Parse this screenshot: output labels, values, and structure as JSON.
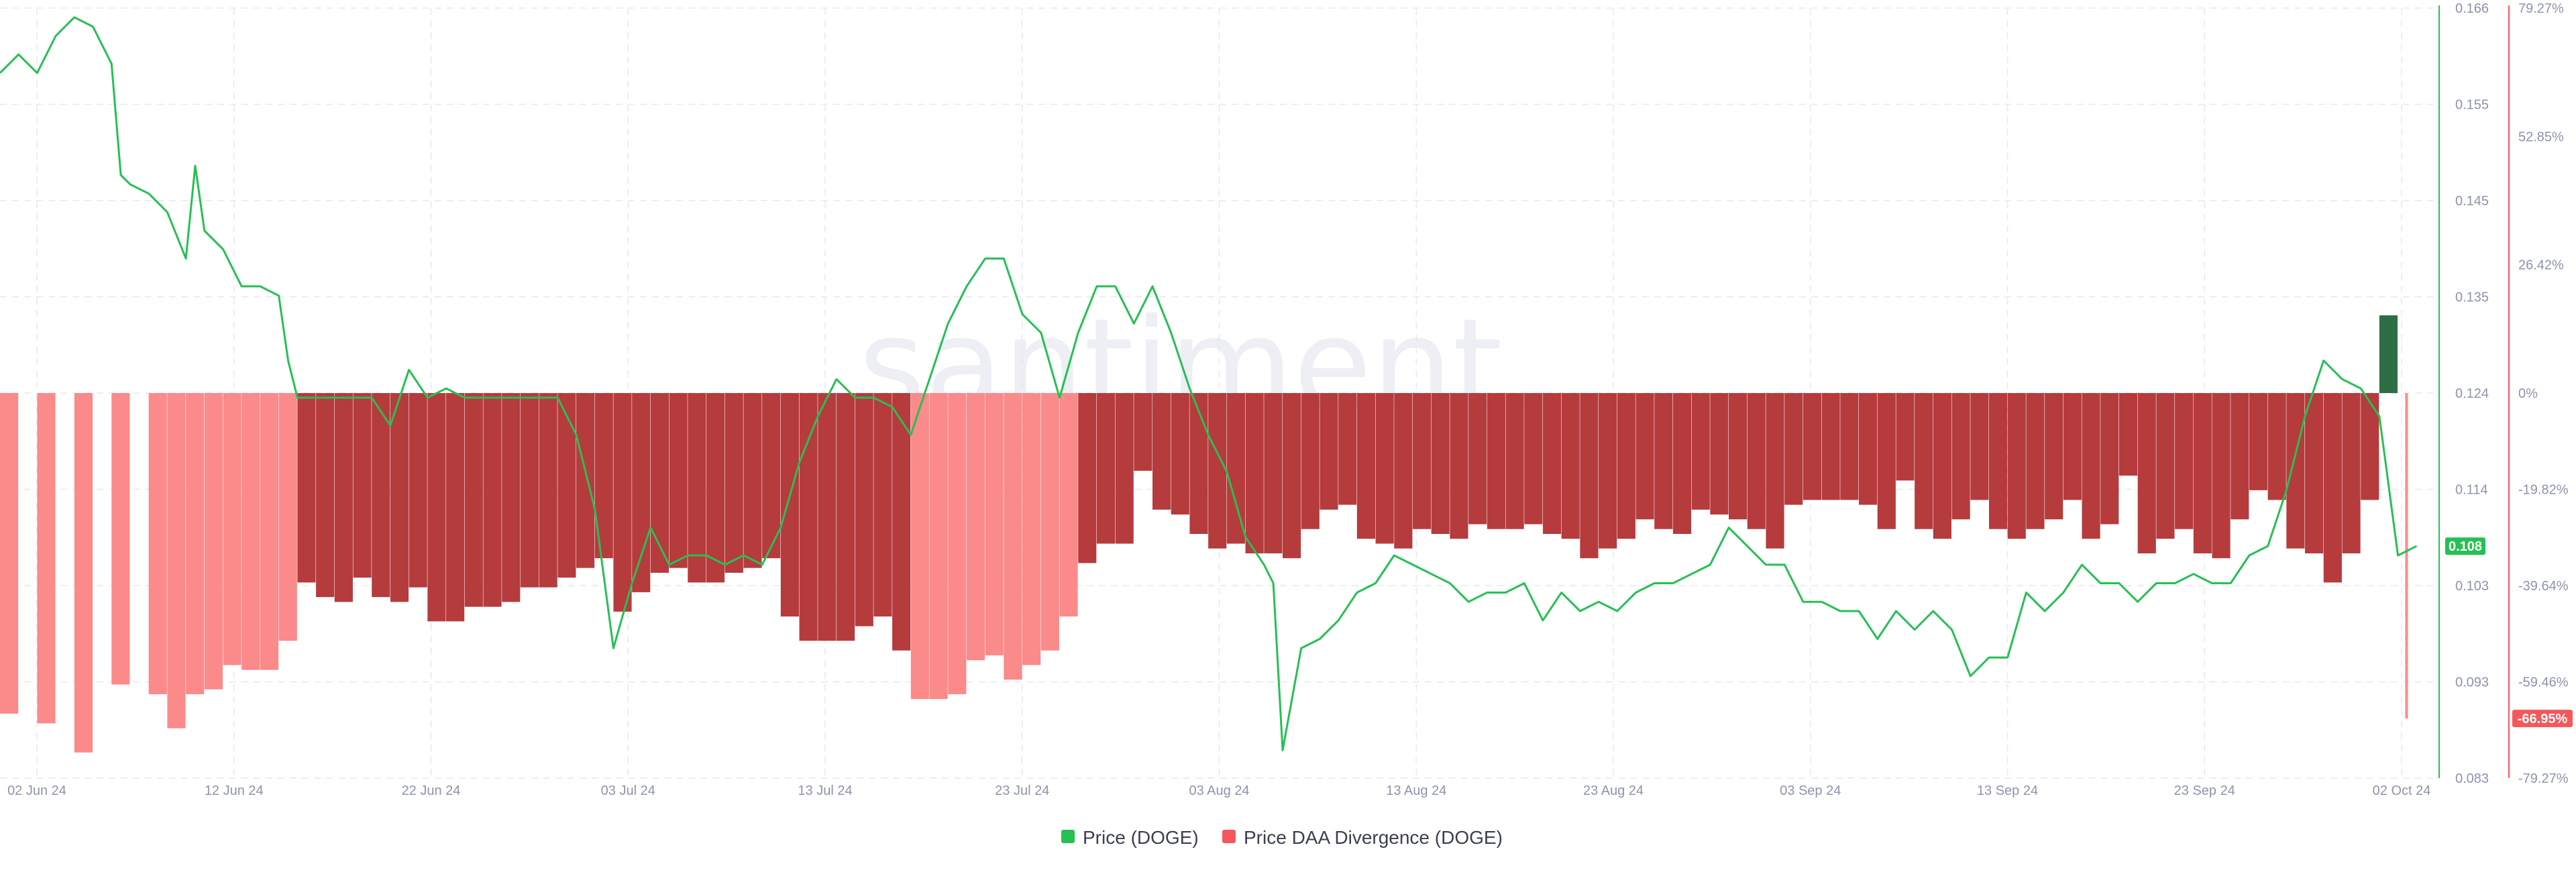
{
  "watermark": "santiment.",
  "legend": [
    {
      "label": "Price (DOGE)",
      "color": "#26c053"
    },
    {
      "label": "Price DAA Divergence (DOGE)",
      "color": "#f4585c"
    }
  ],
  "colors": {
    "price_line": "#26c053",
    "divergence_light": "#fb8a8a",
    "divergence_dark": "#b53b3d",
    "divergence_positive": "#2e6e44",
    "grid": "#e6e8ef",
    "price_badge_bg": "#26c053",
    "divergence_badge_bg": "#f4585c"
  },
  "badges": {
    "price": "0.108",
    "divergence": "-66.95%"
  },
  "chart_data": {
    "type": "line",
    "title": "",
    "x_tick_labels": [
      "02 Jun 24",
      "12 Jun 24",
      "22 Jun 24",
      "03 Jul 24",
      "13 Jul 24",
      "23 Jul 24",
      "03 Aug 24",
      "13 Aug 24",
      "23 Aug 24",
      "03 Sep 24",
      "13 Sep 24",
      "23 Sep 24",
      "02 Oct 24"
    ],
    "x_range_days": [
      0,
      122
    ],
    "price_axis": {
      "ticks": [
        "0.166",
        "0.155",
        "0.145",
        "0.135",
        "0.124",
        "0.114",
        "0.103",
        "0.093",
        "0.083"
      ],
      "ylim": [
        0.083,
        0.166
      ]
    },
    "divergence_axis": {
      "ticks": [
        "79.27%",
        "52.85%",
        "26.42%",
        "0%",
        "-19.82%",
        "-39.64%",
        "-59.46%",
        "-79.27%"
      ],
      "ylim": [
        -79.27,
        79.27
      ]
    },
    "legend_position": "bottom-center",
    "grid": true,
    "series": [
      {
        "name": "Price (DOGE)",
        "kind": "line",
        "axis": "left",
        "points": [
          [
            0,
            0.159
          ],
          [
            1,
            0.161
          ],
          [
            2,
            0.159
          ],
          [
            3,
            0.163
          ],
          [
            4,
            0.165
          ],
          [
            5,
            0.164
          ],
          [
            6,
            0.16
          ],
          [
            6.5,
            0.148
          ],
          [
            7,
            0.147
          ],
          [
            8,
            0.146
          ],
          [
            9,
            0.144
          ],
          [
            10,
            0.139
          ],
          [
            10.5,
            0.149
          ],
          [
            11,
            0.142
          ],
          [
            12,
            0.14
          ],
          [
            13,
            0.136
          ],
          [
            14,
            0.136
          ],
          [
            15,
            0.135
          ],
          [
            15.5,
            0.128
          ],
          [
            16,
            0.124
          ],
          [
            17,
            0.124
          ],
          [
            18,
            0.124
          ],
          [
            19,
            0.124
          ],
          [
            20,
            0.124
          ],
          [
            21,
            0.121
          ],
          [
            22,
            0.127
          ],
          [
            23,
            0.124
          ],
          [
            24,
            0.125
          ],
          [
            25,
            0.124
          ],
          [
            26,
            0.124
          ],
          [
            27,
            0.124
          ],
          [
            28,
            0.124
          ],
          [
            29,
            0.124
          ],
          [
            30,
            0.124
          ],
          [
            31,
            0.12
          ],
          [
            32,
            0.112
          ],
          [
            33,
            0.097
          ],
          [
            34,
            0.104
          ],
          [
            35,
            0.11
          ],
          [
            36,
            0.106
          ],
          [
            37,
            0.107
          ],
          [
            38,
            0.107
          ],
          [
            39,
            0.106
          ],
          [
            40,
            0.107
          ],
          [
            41,
            0.106
          ],
          [
            42,
            0.11
          ],
          [
            43,
            0.117
          ],
          [
            44,
            0.122
          ],
          [
            45,
            0.126
          ],
          [
            46,
            0.124
          ],
          [
            47,
            0.124
          ],
          [
            48,
            0.123
          ],
          [
            49,
            0.12
          ],
          [
            50,
            0.126
          ],
          [
            51,
            0.132
          ],
          [
            52,
            0.136
          ],
          [
            53,
            0.139
          ],
          [
            54,
            0.139
          ],
          [
            55,
            0.133
          ],
          [
            56,
            0.131
          ],
          [
            57,
            0.124
          ],
          [
            58,
            0.131
          ],
          [
            59,
            0.136
          ],
          [
            60,
            0.136
          ],
          [
            61,
            0.132
          ],
          [
            62,
            0.136
          ],
          [
            63,
            0.131
          ],
          [
            64,
            0.125
          ],
          [
            65,
            0.12
          ],
          [
            66,
            0.116
          ],
          [
            67,
            0.109
          ],
          [
            68,
            0.106
          ],
          [
            68.5,
            0.104
          ],
          [
            69,
            0.086
          ],
          [
            70,
            0.097
          ],
          [
            71,
            0.098
          ],
          [
            72,
            0.1
          ],
          [
            73,
            0.103
          ],
          [
            74,
            0.104
          ],
          [
            75,
            0.107
          ],
          [
            76,
            0.106
          ],
          [
            77,
            0.105
          ],
          [
            78,
            0.104
          ],
          [
            79,
            0.102
          ],
          [
            80,
            0.103
          ],
          [
            81,
            0.103
          ],
          [
            82,
            0.104
          ],
          [
            83,
            0.1
          ],
          [
            84,
            0.103
          ],
          [
            85,
            0.101
          ],
          [
            86,
            0.102
          ],
          [
            87,
            0.101
          ],
          [
            88,
            0.103
          ],
          [
            89,
            0.104
          ],
          [
            90,
            0.104
          ],
          [
            91,
            0.105
          ],
          [
            92,
            0.106
          ],
          [
            93,
            0.11
          ],
          [
            94,
            0.108
          ],
          [
            95,
            0.106
          ],
          [
            96,
            0.106
          ],
          [
            97,
            0.102
          ],
          [
            98,
            0.102
          ],
          [
            99,
            0.101
          ],
          [
            100,
            0.101
          ],
          [
            101,
            0.098
          ],
          [
            102,
            0.101
          ],
          [
            103,
            0.099
          ],
          [
            104,
            0.101
          ],
          [
            105,
            0.099
          ],
          [
            106,
            0.094
          ],
          [
            107,
            0.096
          ],
          [
            108,
            0.096
          ],
          [
            109,
            0.103
          ],
          [
            110,
            0.101
          ],
          [
            111,
            0.103
          ],
          [
            112,
            0.106
          ],
          [
            113,
            0.104
          ],
          [
            114,
            0.104
          ],
          [
            115,
            0.102
          ],
          [
            116,
            0.104
          ],
          [
            117,
            0.104
          ],
          [
            118,
            0.105
          ],
          [
            119,
            0.104
          ],
          [
            120,
            0.104
          ],
          [
            121,
            0.107
          ],
          [
            122,
            0.108
          ],
          [
            123,
            0.114
          ],
          [
            124,
            0.122
          ],
          [
            125,
            0.128
          ],
          [
            126,
            0.126
          ],
          [
            127,
            0.125
          ],
          [
            128,
            0.122
          ],
          [
            129,
            0.107
          ],
          [
            130,
            0.108
          ]
        ]
      },
      {
        "name": "Price DAA Divergence (DOGE)",
        "kind": "histogram",
        "axis": "right",
        "bars": [
          [
            0,
            -66
          ],
          [
            2,
            -68
          ],
          [
            4,
            -74
          ],
          [
            6,
            -60
          ],
          [
            8,
            -62
          ],
          [
            9,
            -69
          ],
          [
            10,
            -62
          ],
          [
            11,
            -61
          ],
          [
            12,
            -56
          ],
          [
            13,
            -57
          ],
          [
            14,
            -57
          ],
          [
            15,
            -51
          ],
          [
            16,
            -39
          ],
          [
            17,
            -42
          ],
          [
            18,
            -43
          ],
          [
            19,
            -38
          ],
          [
            20,
            -42
          ],
          [
            21,
            -43
          ],
          [
            22,
            -40
          ],
          [
            23,
            -47
          ],
          [
            24,
            -47
          ],
          [
            25,
            -44
          ],
          [
            26,
            -44
          ],
          [
            27,
            -43
          ],
          [
            28,
            -40
          ],
          [
            29,
            -40
          ],
          [
            30,
            -38
          ],
          [
            31,
            -36
          ],
          [
            32,
            -34
          ],
          [
            33,
            -45
          ],
          [
            34,
            -41
          ],
          [
            35,
            -37
          ],
          [
            36,
            -36
          ],
          [
            37,
            -39
          ],
          [
            38,
            -39
          ],
          [
            39,
            -37
          ],
          [
            40,
            -36
          ],
          [
            41,
            -34
          ],
          [
            42,
            -46
          ],
          [
            43,
            -51
          ],
          [
            44,
            -51
          ],
          [
            45,
            -51
          ],
          [
            46,
            -48
          ],
          [
            47,
            -46
          ],
          [
            48,
            -53
          ],
          [
            49,
            -63
          ],
          [
            50,
            -63
          ],
          [
            51,
            -62
          ],
          [
            52,
            -55
          ],
          [
            53,
            -54
          ],
          [
            54,
            -59
          ],
          [
            55,
            -56
          ],
          [
            56,
            -53
          ],
          [
            57,
            -46
          ],
          [
            58,
            -35
          ],
          [
            59,
            -31
          ],
          [
            60,
            -31
          ],
          [
            61,
            -16
          ],
          [
            62,
            -24
          ],
          [
            63,
            -25
          ],
          [
            64,
            -29
          ],
          [
            65,
            -32
          ],
          [
            66,
            -31
          ],
          [
            67,
            -33
          ],
          [
            68,
            -33
          ],
          [
            69,
            -34
          ],
          [
            70,
            -28
          ],
          [
            71,
            -24
          ],
          [
            72,
            -23
          ],
          [
            73,
            -30
          ],
          [
            74,
            -31
          ],
          [
            75,
            -32
          ],
          [
            76,
            -28
          ],
          [
            77,
            -29
          ],
          [
            78,
            -30
          ],
          [
            79,
            -27
          ],
          [
            80,
            -28
          ],
          [
            81,
            -28
          ],
          [
            82,
            -27
          ],
          [
            83,
            -29
          ],
          [
            84,
            -30
          ],
          [
            85,
            -34
          ],
          [
            86,
            -32
          ],
          [
            87,
            -30
          ],
          [
            88,
            -26
          ],
          [
            89,
            -28
          ],
          [
            90,
            -29
          ],
          [
            91,
            -24
          ],
          [
            92,
            -25
          ],
          [
            93,
            -26
          ],
          [
            94,
            -28
          ],
          [
            95,
            -32
          ],
          [
            96,
            -23
          ],
          [
            97,
            -22
          ],
          [
            98,
            -22
          ],
          [
            99,
            -22
          ],
          [
            100,
            -23
          ],
          [
            101,
            -28
          ],
          [
            102,
            -18
          ],
          [
            103,
            -28
          ],
          [
            104,
            -30
          ],
          [
            105,
            -26
          ],
          [
            106,
            -22
          ],
          [
            107,
            -28
          ],
          [
            108,
            -30
          ],
          [
            109,
            -28
          ],
          [
            110,
            -26
          ],
          [
            111,
            -22
          ],
          [
            112,
            -30
          ],
          [
            113,
            -27
          ],
          [
            114,
            -17
          ],
          [
            115,
            -33
          ],
          [
            116,
            -30
          ],
          [
            117,
            -28
          ],
          [
            118,
            -33
          ],
          [
            119,
            -34
          ],
          [
            120,
            -26
          ],
          [
            121,
            -20
          ],
          [
            122,
            -22
          ],
          [
            123,
            -32
          ],
          [
            124,
            -33
          ],
          [
            125,
            -39
          ],
          [
            126,
            -33
          ],
          [
            127,
            -22
          ],
          [
            128,
            16
          ],
          [
            129,
            -67
          ]
        ]
      }
    ]
  }
}
